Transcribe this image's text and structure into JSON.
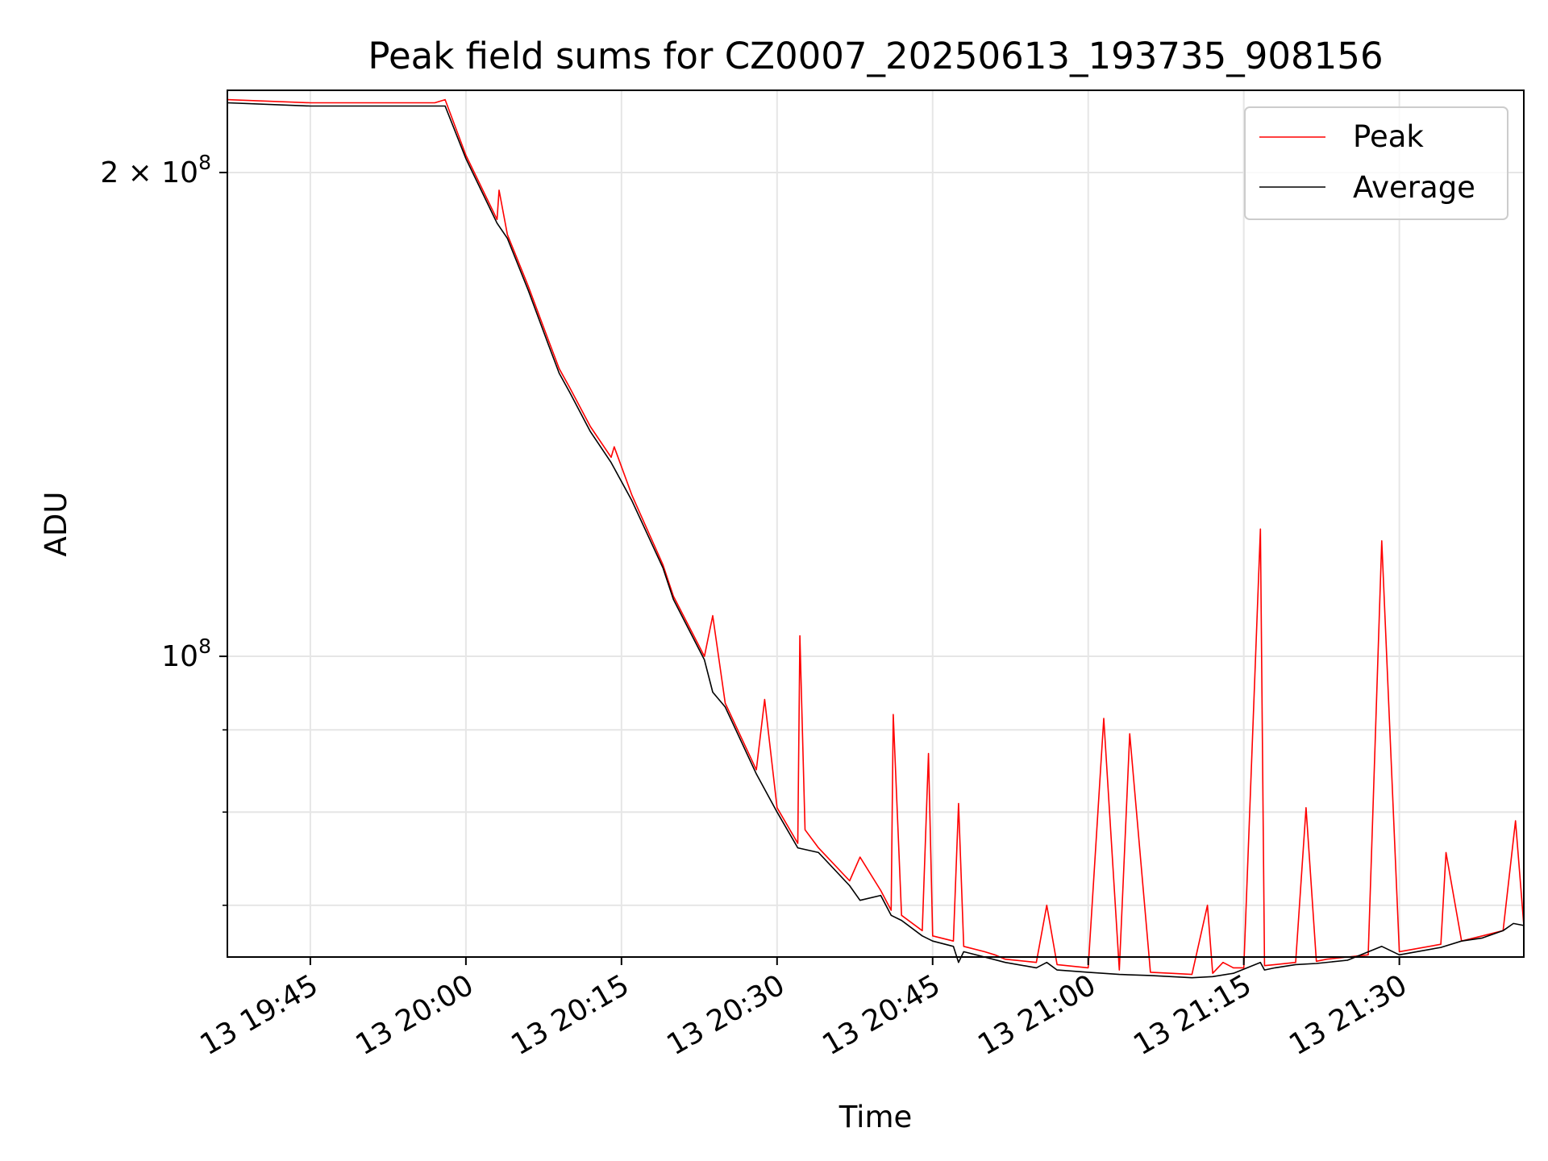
{
  "chart_data": {
    "type": "line",
    "title": "Peak field sums for CZ0007_20250613_193735_908156",
    "xlabel": "Time",
    "ylabel": "ADU",
    "x_range": [
      "19:37",
      "21:42"
    ],
    "x_tick_values": [
      "19:45",
      "20:00",
      "20:15",
      "20:30",
      "20:45",
      "21:00",
      "21:15",
      "21:30"
    ],
    "x_tick_labels": [
      "13 19:45",
      "13 20:00",
      "13 20:15",
      "13 20:30",
      "13 20:45",
      "13 21:00",
      "13 21:15",
      "13 21:30"
    ],
    "y_scale": "log",
    "ylim": [
      65000000,
      225000000
    ],
    "y_major_ticks": [
      {
        "value": 200000000,
        "mantissa": "2",
        "base": "10",
        "exponent": "8"
      },
      {
        "value": 100000000,
        "mantissa": "",
        "base": "10",
        "exponent": "8"
      }
    ],
    "y_minor_ticks": [
      70000000,
      80000000,
      90000000
    ],
    "grid": true,
    "legend_position": "upper right",
    "series": [
      {
        "name": "Peak",
        "color": "#ff0000",
        "x": [
          "19:37",
          "19:45",
          "19:52",
          "19:57",
          "19:58",
          "20:00",
          "20:03",
          "20:03.2",
          "20:04",
          "20:06",
          "20:08",
          "20:09",
          "20:10",
          "20:12",
          "20:14",
          "20:14.3",
          "20:16",
          "20:19",
          "20:20",
          "20:23",
          "20:23.8",
          "20:25",
          "20:28",
          "20:28.8",
          "20:30",
          "20:32",
          "20:32.2",
          "20:32.7",
          "20:34",
          "20:37",
          "20:38",
          "20:40",
          "20:41",
          "20:41.2",
          "20:42",
          "20:44",
          "20:44.6",
          "20:45",
          "20:47",
          "20:47.5",
          "20:48",
          "20:50",
          "20:51",
          "20:52",
          "20:55",
          "20:56",
          "20:57",
          "21:00",
          "21:01.5",
          "21:03",
          "21:04",
          "21:06",
          "21:08",
          "21:10",
          "21:11.5",
          "21:12",
          "21:13",
          "21:14",
          "21:15",
          "21:16.6",
          "21:17",
          "21:18",
          "21:20",
          "21:21",
          "21:22",
          "21:23",
          "21:25",
          "21:27",
          "21:28.3",
          "21:30",
          "21:34",
          "21:34.5",
          "21:36",
          "21:38",
          "21:40",
          "21:41.2",
          "21:42"
        ],
        "y": [
          222000000,
          221000000,
          221000000,
          221000000,
          222000000,
          205000000,
          187000000,
          195000000,
          183000000,
          170000000,
          157000000,
          151000000,
          147000000,
          139000000,
          133000000,
          135000000,
          126000000,
          114000000,
          109000000,
          100000000,
          106000000,
          93500000,
          85000000,
          94000000,
          80500000,
          76500000,
          103000000,
          78000000,
          76000000,
          72500000,
          75000000,
          71500000,
          69500000,
          92000000,
          69000000,
          67500000,
          87000000,
          67000000,
          66500000,
          81000000,
          66000000,
          65500000,
          65200000,
          64800000,
          64500000,
          70000000,
          64300000,
          64000000,
          91500000,
          63800000,
          89500000,
          63600000,
          63500000,
          63400000,
          70000000,
          63500000,
          64500000,
          64000000,
          64000000,
          120000000,
          64200000,
          64300000,
          64500000,
          80500000,
          64600000,
          64800000,
          65000000,
          65200000,
          118000000,
          65500000,
          66200000,
          75500000,
          66500000,
          67000000,
          67500000,
          79000000,
          68000000
        ]
      },
      {
        "name": "Average",
        "color": "#000000",
        "x": [
          "19:37",
          "19:45",
          "19:52",
          "19:57",
          "19:58",
          "20:00",
          "20:03",
          "20:04",
          "20:06",
          "20:08",
          "20:09",
          "20:10",
          "20:12",
          "20:14",
          "20:16",
          "20:19",
          "20:20",
          "20:23",
          "20:23.8",
          "20:25",
          "20:28",
          "20:30",
          "20:32",
          "20:34",
          "20:37",
          "20:38",
          "20:40",
          "20:41",
          "20:42",
          "20:44",
          "20:45",
          "20:47",
          "20:47.5",
          "20:48",
          "20:50",
          "20:52",
          "20:55",
          "20:56",
          "20:57",
          "21:00",
          "21:03",
          "21:06",
          "21:08",
          "21:10",
          "21:12",
          "21:14",
          "21:16.6",
          "21:17",
          "21:18",
          "21:20",
          "21:22",
          "21:25",
          "21:28.3",
          "21:30",
          "21:34",
          "21:36",
          "21:38",
          "21:40",
          "21:41",
          "21:42"
        ],
        "y": [
          221000000,
          220000000,
          220000000,
          220000000,
          220000000,
          204000000,
          186000000,
          182000000,
          169000000,
          156000000,
          150000000,
          146000000,
          138000000,
          132000000,
          125000000,
          113500000,
          108500000,
          99500000,
          95000000,
          93000000,
          84500000,
          80000000,
          76000000,
          75500000,
          72000000,
          70500000,
          71000000,
          69000000,
          68500000,
          67000000,
          66500000,
          66000000,
          64500000,
          65500000,
          65000000,
          64500000,
          64000000,
          64500000,
          63800000,
          63600000,
          63400000,
          63300000,
          63200000,
          63100000,
          63200000,
          63500000,
          64500000,
          63800000,
          64000000,
          64300000,
          64400000,
          64700000,
          66000000,
          65200000,
          65900000,
          66500000,
          66800000,
          67500000,
          68200000,
          68000000
        ]
      }
    ]
  }
}
